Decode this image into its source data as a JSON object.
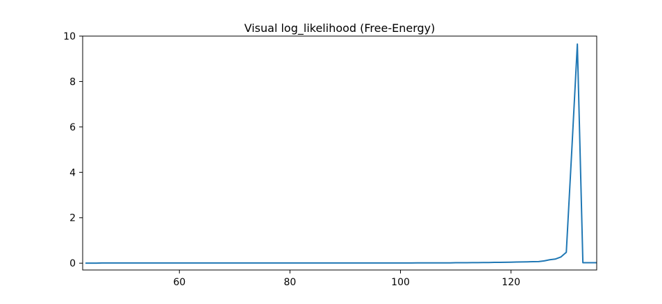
{
  "chart_data": {
    "type": "line",
    "title": "Visual log_likelihood (Free-Energy)",
    "xlabel": "",
    "ylabel": "",
    "xlim": [
      42.5,
      135.5
    ],
    "ylim": [
      -0.3,
      10
    ],
    "xticks": [
      60,
      80,
      100,
      120
    ],
    "yticks": [
      0,
      2,
      4,
      6,
      8,
      10
    ],
    "grid": false,
    "legend": "none",
    "series": [
      {
        "color": "#1f77b4",
        "x": [
          43,
          44,
          45,
          46,
          47,
          48,
          49,
          50,
          51,
          52,
          53,
          54,
          55,
          56,
          57,
          58,
          59,
          60,
          61,
          62,
          63,
          64,
          65,
          66,
          67,
          68,
          69,
          70,
          71,
          72,
          73,
          74,
          75,
          76,
          77,
          78,
          79,
          80,
          81,
          82,
          83,
          84,
          85,
          86,
          87,
          88,
          89,
          90,
          91,
          92,
          93,
          94,
          95,
          96,
          97,
          98,
          99,
          100,
          101,
          102,
          103,
          104,
          105,
          106,
          107,
          108,
          109,
          110,
          111,
          112,
          113,
          114,
          115,
          116,
          117,
          118,
          119,
          120,
          121,
          122,
          123,
          124,
          125,
          126,
          127,
          128,
          129,
          130,
          131,
          132,
          133,
          134,
          135,
          136
        ],
        "y": [
          0.0,
          0.0,
          0.0,
          0.01,
          0.01,
          0.01,
          0.01,
          0.01,
          0.01,
          0.01,
          0.01,
          0.01,
          0.01,
          0.01,
          0.01,
          0.01,
          0.01,
          0.01,
          0.01,
          0.01,
          0.01,
          0.01,
          0.01,
          0.01,
          0.01,
          0.01,
          0.01,
          0.01,
          0.01,
          0.01,
          0.01,
          0.01,
          0.01,
          0.01,
          0.01,
          0.01,
          0.01,
          0.01,
          0.01,
          0.01,
          0.01,
          0.01,
          0.01,
          0.01,
          0.01,
          0.01,
          0.01,
          0.01,
          0.01,
          0.01,
          0.01,
          0.01,
          0.01,
          0.01,
          0.01,
          0.01,
          0.01,
          0.01,
          0.01,
          0.01,
          0.015,
          0.015,
          0.015,
          0.015,
          0.015,
          0.015,
          0.015,
          0.02,
          0.02,
          0.02,
          0.025,
          0.025,
          0.03,
          0.03,
          0.035,
          0.035,
          0.04,
          0.045,
          0.05,
          0.055,
          0.06,
          0.065,
          0.07,
          0.1,
          0.15,
          0.18,
          0.27,
          0.48,
          5.0,
          9.65,
          0.02,
          0.02,
          0.02,
          0.02
        ]
      }
    ]
  }
}
